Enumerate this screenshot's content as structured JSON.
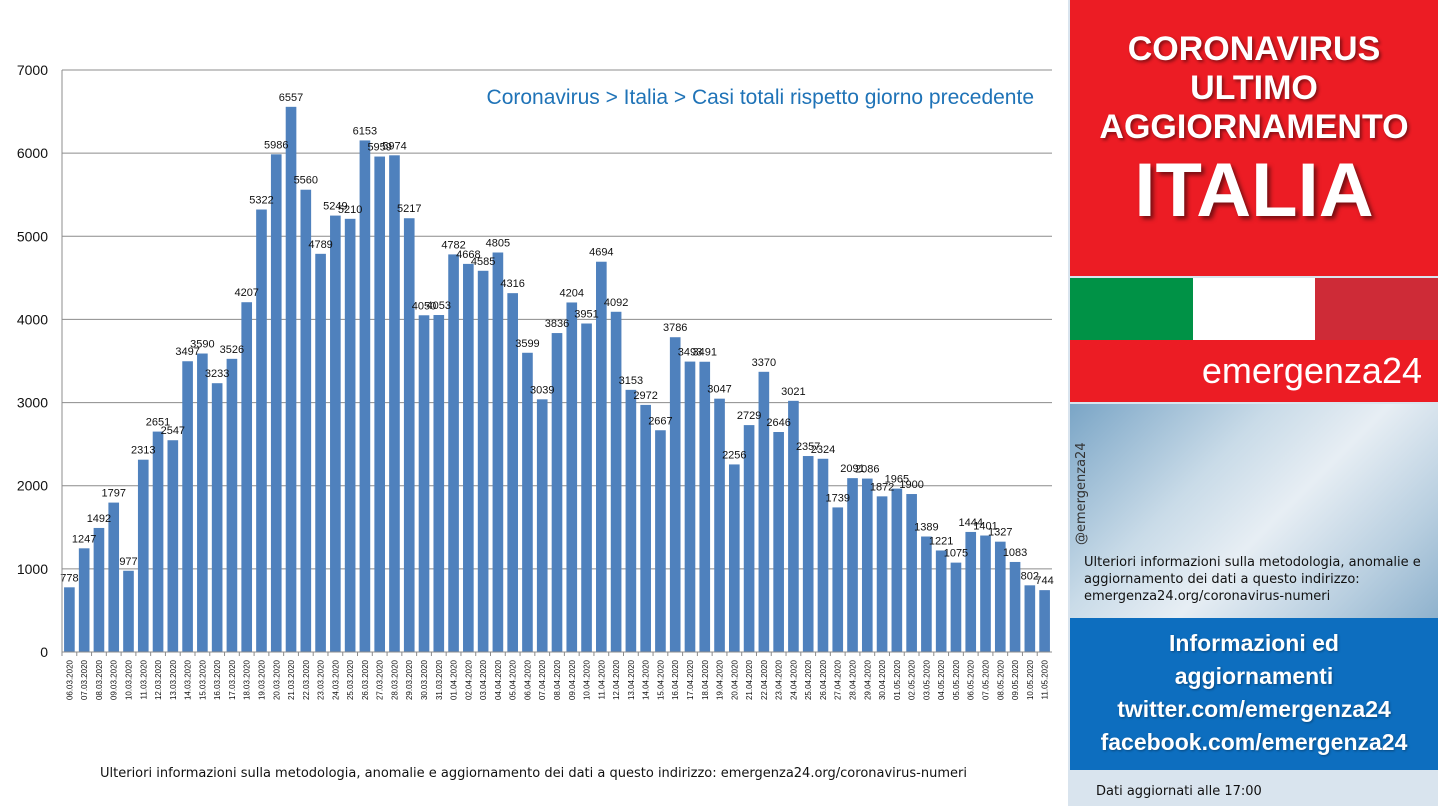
{
  "chart_data": {
    "type": "bar",
    "title": "Coronavirus > Italia > Casi totali rispetto giorno precedente",
    "xlabel": "",
    "ylabel": "",
    "ylim": [
      0,
      7000
    ],
    "yticks": [
      0,
      1000,
      2000,
      3000,
      4000,
      5000,
      6000,
      7000
    ],
    "grid": true,
    "bar_color": "#4f81bd",
    "categories": [
      "06.03.2020",
      "07.03.2020",
      "08.03.2020",
      "09.03.2020",
      "10.03.2020",
      "11.03.2020",
      "12.03.2020",
      "13.03.2020",
      "14.03.2020",
      "15.03.2020",
      "16.03.2020",
      "17.03.2020",
      "18.03.2020",
      "19.03.2020",
      "20.03.2020",
      "21.03.2020",
      "22.03.2020",
      "23.03.2020",
      "24.03.2020",
      "25.03.2020",
      "26.03.2020",
      "27.03.2020",
      "28.03.2020",
      "29.03.2020",
      "30.03.2020",
      "31.03.2020",
      "01.04.2020",
      "02.04.2020",
      "03.04.2020",
      "04.04.2020",
      "05.04.2020",
      "06.04.2020",
      "07.04.2020",
      "08.04.2020",
      "09.04.2020",
      "10.04.2020",
      "11.04.2020",
      "12.04.2020",
      "13.04.2020",
      "14.04.2020",
      "15.04.2020",
      "16.04.2020",
      "17.04.2020",
      "18.04.2020",
      "19.04.2020",
      "20.04.2020",
      "21.04.2020",
      "22.04.2020",
      "23.04.2020",
      "24.04.2020",
      "25.04.2020",
      "26.04.2020",
      "27.04.2020",
      "28.04.2020",
      "29.04.2020",
      "30.04.2020",
      "01.05.2020",
      "02.05.2020",
      "03.05.2020",
      "04.05.2020",
      "05.05.2020",
      "06.05.2020",
      "07.05.2020",
      "08.05.2020",
      "09.05.2020",
      "10.05.2020",
      "11.05.2020"
    ],
    "values": [
      778,
      1247,
      1492,
      1797,
      977,
      2313,
      2651,
      2547,
      3497,
      3590,
      3233,
      3526,
      4207,
      5322,
      5986,
      6557,
      5560,
      4789,
      5249,
      5210,
      6153,
      5959,
      5974,
      5217,
      4050,
      4053,
      4782,
      4668,
      4585,
      4805,
      4316,
      3599,
      3039,
      3836,
      4204,
      3951,
      4694,
      4092,
      3153,
      2972,
      2667,
      3786,
      3493,
      3491,
      3047,
      2256,
      2729,
      3370,
      2646,
      3021,
      2357,
      2324,
      1739,
      2091,
      2086,
      1872,
      1965,
      1900,
      1389,
      1221,
      1075,
      1444,
      1401,
      1327,
      1083,
      802,
      744
    ]
  },
  "footer_note": "Ulteriori  informazioni  sulla metodologia,  anomalie  e aggiornamento  dei dati  a questo indirizzo:  emergenza24.org/coronavirus-numeri",
  "panel": {
    "header_line1": "CORONAVIRUS",
    "header_line2": "ULTIMO",
    "header_line3": "AGGIORNAMENTO",
    "header_big": "ITALIA",
    "flag_colors": [
      "#009246",
      "#ffffff",
      "#ce2b37"
    ],
    "brand": "emergenza24",
    "handle": "@emergenza24",
    "side_note": "Ulteriori informazioni sulla metodologia, anomalie e aggiornamento dei dati a questo indirizzo: emergenza24.org/coronavirus-numeri",
    "info_line1": "Informazioni ed",
    "info_line2": "aggiornamenti",
    "info_line3": "twitter.com/emergenza24",
    "info_line4": "facebook.com/emergenza24",
    "updated": "Dati aggiornati alle 17:00"
  }
}
